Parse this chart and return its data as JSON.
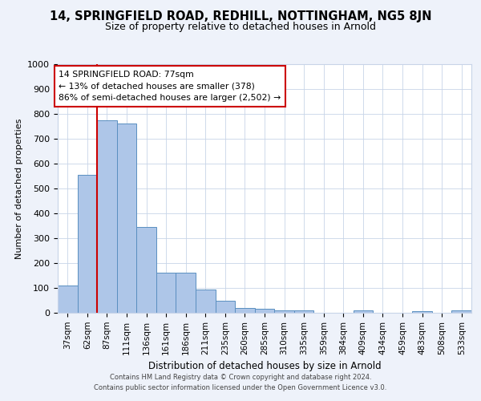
{
  "title1": "14, SPRINGFIELD ROAD, REDHILL, NOTTINGHAM, NG5 8JN",
  "title2": "Size of property relative to detached houses in Arnold",
  "xlabel": "Distribution of detached houses by size in Arnold",
  "ylabel": "Number of detached properties",
  "categories": [
    "37sqm",
    "62sqm",
    "87sqm",
    "111sqm",
    "136sqm",
    "161sqm",
    "186sqm",
    "211sqm",
    "235sqm",
    "260sqm",
    "285sqm",
    "310sqm",
    "335sqm",
    "359sqm",
    "384sqm",
    "409sqm",
    "434sqm",
    "459sqm",
    "483sqm",
    "508sqm",
    "533sqm"
  ],
  "bar_heights": [
    110,
    555,
    775,
    760,
    345,
    160,
    160,
    95,
    50,
    20,
    15,
    10,
    10,
    0,
    0,
    10,
    0,
    0,
    5,
    0,
    10
  ],
  "bar_color": "#aec6e8",
  "bar_edge_color": "#5a8fc0",
  "annotation_text_line1": "14 SPRINGFIELD ROAD: 77sqm",
  "annotation_text_line2": "← 13% of detached houses are smaller (378)",
  "annotation_text_line3": "86% of semi-detached houses are larger (2,502) →",
  "vline_color": "#cc0000",
  "annotation_box_color": "#ffffff",
  "annotation_box_edge_color": "#cc0000",
  "ylim": [
    0,
    1000
  ],
  "yticks": [
    0,
    100,
    200,
    300,
    400,
    500,
    600,
    700,
    800,
    900,
    1000
  ],
  "footer_line1": "Contains HM Land Registry data © Crown copyright and database right 2024.",
  "footer_line2": "Contains public sector information licensed under the Open Government Licence v3.0.",
  "background_color": "#eef2fa",
  "plot_background_color": "#ffffff",
  "grid_color": "#c8d4e8",
  "title1_fontsize": 10.5,
  "title2_fontsize": 9,
  "vline_x": 1.5
}
